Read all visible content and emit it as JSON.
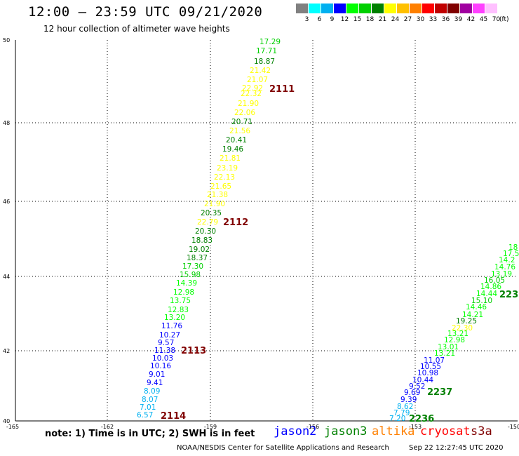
{
  "title": "12:00 – 23:59 UTC 09/21/2020",
  "subtitle": "12 hour collection of altimeter wave heights",
  "colorbar": {
    "units": "(ft)",
    "bins": [
      {
        "label": "3",
        "color": "#808080"
      },
      {
        "label": "6",
        "color": "#00ffff"
      },
      {
        "label": "9",
        "color": "#00b0f0"
      },
      {
        "label": "12",
        "color": "#0000ff"
      },
      {
        "label": "15",
        "color": "#00ff00"
      },
      {
        "label": "18",
        "color": "#00d000"
      },
      {
        "label": "21",
        "color": "#008000"
      },
      {
        "label": "24",
        "color": "#ffff00"
      },
      {
        "label": "27",
        "color": "#ffc000"
      },
      {
        "label": "30",
        "color": "#ff8000"
      },
      {
        "label": "33",
        "color": "#ff0000"
      },
      {
        "label": "36",
        "color": "#c00000"
      },
      {
        "label": "39",
        "color": "#800000"
      },
      {
        "label": "42",
        "color": "#a000a0"
      },
      {
        "label": "45",
        "color": "#ff40ff"
      },
      {
        "label": "70",
        "color": "#ffc0ff"
      }
    ]
  },
  "axes": {
    "lon_ticks": [
      "-165",
      "-162",
      "-159",
      "-156",
      "-153",
      "-150"
    ],
    "lat_ticks": [
      "50",
      "48",
      "46",
      "44",
      "42",
      "40"
    ]
  },
  "tracks": [
    {
      "points": [
        {
          "v": "17.29",
          "c": "#00d000"
        },
        {
          "v": "17.71",
          "c": "#00d000"
        },
        {
          "v": "18.87",
          "c": "#008000"
        },
        {
          "v": "21.42",
          "c": "#ffff00"
        },
        {
          "v": "21.07",
          "c": "#ffff00"
        },
        {
          "v": "22.92",
          "c": "#ffff00"
        },
        {
          "v": "22.32",
          "c": "#ffff00"
        },
        {
          "v": "21.90",
          "c": "#ffff00"
        },
        {
          "v": "22.06",
          "c": "#ffff00"
        },
        {
          "v": "20.71",
          "c": "#008000"
        },
        {
          "v": "21.56",
          "c": "#ffff00"
        },
        {
          "v": "20.41",
          "c": "#008000"
        },
        {
          "v": "19.46",
          "c": "#008000"
        },
        {
          "v": "21.81",
          "c": "#ffff00"
        },
        {
          "v": "23.19",
          "c": "#ffff00"
        },
        {
          "v": "22.13",
          "c": "#ffff00"
        },
        {
          "v": "21.65",
          "c": "#ffff00"
        },
        {
          "v": "21.38",
          "c": "#ffff00"
        },
        {
          "v": "21.90",
          "c": "#ffff00"
        },
        {
          "v": "20.35",
          "c": "#008000"
        },
        {
          "v": "22.79",
          "c": "#ffff00"
        },
        {
          "v": "20.30",
          "c": "#008000"
        },
        {
          "v": "18.83",
          "c": "#008000"
        },
        {
          "v": "19.02",
          "c": "#008000"
        },
        {
          "v": "18.37",
          "c": "#008000"
        },
        {
          "v": "17.30",
          "c": "#00d000"
        },
        {
          "v": "15.98",
          "c": "#00d000"
        },
        {
          "v": "14.39",
          "c": "#00ff00"
        },
        {
          "v": "12.98",
          "c": "#00ff00"
        },
        {
          "v": "13.75",
          "c": "#00ff00"
        },
        {
          "v": "12.83",
          "c": "#00ff00"
        },
        {
          "v": "13.20",
          "c": "#00ff00"
        },
        {
          "v": "11.76",
          "c": "#0000ff"
        },
        {
          "v": "10.27",
          "c": "#0000ff"
        },
        {
          "v": "9.57",
          "c": "#0000ff"
        },
        {
          "v": "11.38",
          "c": "#0000ff"
        },
        {
          "v": "10.03",
          "c": "#0000ff"
        },
        {
          "v": "10.16",
          "c": "#0000ff"
        },
        {
          "v": "9.01",
          "c": "#0000ff"
        },
        {
          "v": "9.41",
          "c": "#0000ff"
        },
        {
          "v": "8.09",
          "c": "#00b0f0"
        },
        {
          "v": "8.07",
          "c": "#00b0f0"
        },
        {
          "v": "7.01",
          "c": "#00b0f0"
        },
        {
          "v": "6.57",
          "c": "#00b0f0"
        }
      ]
    },
    {
      "points": [
        {
          "v": "18",
          "c": "#00ff00"
        },
        {
          "v": "17.5",
          "c": "#00ff00"
        },
        {
          "v": "14.2",
          "c": "#00ff00"
        },
        {
          "v": "14.76",
          "c": "#00ff00"
        },
        {
          "v": "13.19",
          "c": "#00ff00"
        },
        {
          "v": "16.05",
          "c": "#00d000"
        },
        {
          "v": "14.86",
          "c": "#00ff00"
        },
        {
          "v": "14.44",
          "c": "#00ff00"
        },
        {
          "v": "15.10",
          "c": "#00d000"
        },
        {
          "v": "14.46",
          "c": "#00ff00"
        },
        {
          "v": "14.21",
          "c": "#00ff00"
        },
        {
          "v": "19.25",
          "c": "#008000"
        },
        {
          "v": "22.30",
          "c": "#ffff00"
        },
        {
          "v": "13.21",
          "c": "#00ff00"
        },
        {
          "v": "12.98",
          "c": "#00ff00"
        },
        {
          "v": "13.01",
          "c": "#00ff00"
        },
        {
          "v": "13.21",
          "c": "#00ff00"
        },
        {
          "v": "11.07",
          "c": "#0000ff"
        },
        {
          "v": "10.55",
          "c": "#0000ff"
        },
        {
          "v": "10.98",
          "c": "#0000ff"
        },
        {
          "v": "10.44",
          "c": "#0000ff"
        },
        {
          "v": "9.52",
          "c": "#0000ff"
        },
        {
          "v": "9.69",
          "c": "#0000ff"
        },
        {
          "v": "9.39",
          "c": "#0000ff"
        },
        {
          "v": "8.62",
          "c": "#00b0f0"
        },
        {
          "v": "7.79",
          "c": "#00b0f0"
        },
        {
          "v": "7.20",
          "c": "#00b0f0"
        }
      ]
    }
  ],
  "pass_labels": [
    {
      "text": "2111",
      "c": "#800000"
    },
    {
      "text": "2112",
      "c": "#800000"
    },
    {
      "text": "2113",
      "c": "#800000"
    },
    {
      "text": "2114",
      "c": "#800000"
    },
    {
      "text": "2236",
      "c": "#008000"
    },
    {
      "text": "2237",
      "c": "#008000"
    },
    {
      "text": "223",
      "c": "#008000"
    }
  ],
  "note": "note:  1) Time is in UTC;  2) SWH is in feet",
  "legend": [
    {
      "text": "jason2",
      "c": "#0000ff"
    },
    {
      "text": "jason3",
      "c": "#008000"
    },
    {
      "text": "altika",
      "c": "#ff8000"
    },
    {
      "text": "cryosat",
      "c": "#ff0000"
    },
    {
      "text": "s3a",
      "c": "#800000"
    }
  ],
  "footer": {
    "center": "NOAA/NESDIS Center for Satellite Applications and Research",
    "time": "Sep 22 12:27:45 UTC 2020"
  }
}
